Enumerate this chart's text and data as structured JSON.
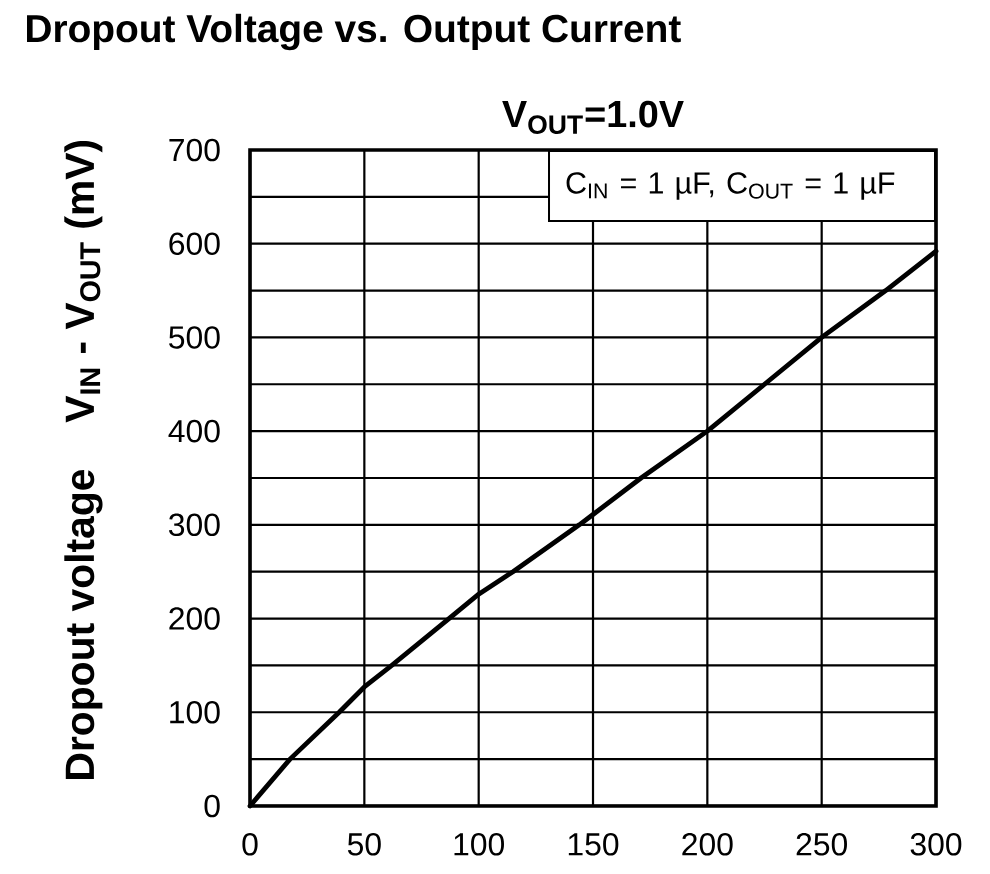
{
  "chart_data": {
    "type": "line",
    "title": "Dropout Voltage vs. Output Current",
    "subtitle": "V$_{OUT}$=1.0V",
    "ylabel": "Dropout voltage    V$_{IN}$ - V$_{OUT}$ (mV)",
    "annotations": [
      "C$_{IN}$ = 1 µF, C$_{OUT}$ = 1 µF"
    ],
    "x": [
      0,
      17.5,
      39,
      50,
      62,
      87,
      100,
      115,
      144,
      150,
      171,
      200,
      225,
      250,
      278,
      300
    ],
    "series": [
      {
        "color": "#000000",
        "values": [
          0,
          50,
          100,
          127,
          150,
          200,
          226,
          250,
          300,
          311,
          350,
          400,
          450,
          500,
          550,
          592
        ]
      }
    ],
    "xlim": [
      0,
      300
    ],
    "xticks": [
      0,
      50,
      100,
      150,
      200,
      250,
      300
    ],
    "ylim": [
      0,
      700
    ],
    "yticks": [
      0,
      {
        "value": 50,
        "label": null
      },
      100,
      {
        "value": 150,
        "label": null
      },
      200,
      {
        "value": 250,
        "label": null
      },
      300,
      {
        "value": 350,
        "label": null
      },
      400,
      {
        "value": 450,
        "label": null
      },
      500,
      {
        "value": 550,
        "label": null
      },
      600,
      {
        "value": 650,
        "label": null
      },
      700
    ],
    "grid": true,
    "line_style": "solid"
  }
}
